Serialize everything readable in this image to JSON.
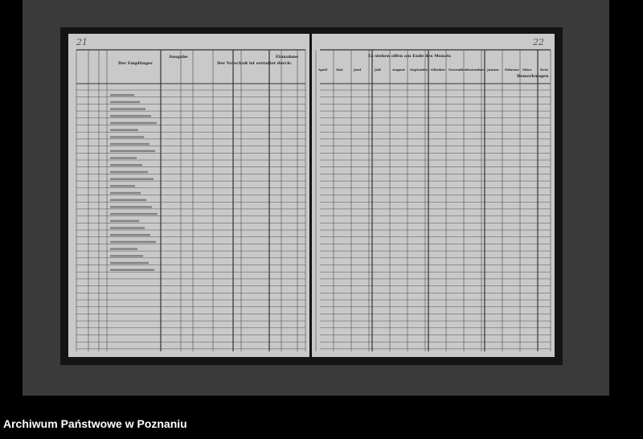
{
  "document": {
    "left_page": {
      "page_number": "21",
      "headers": {
        "recipient": "Der Empfänger",
        "expense": "Ausgabe",
        "advance": "Der Vorschuß ist erstattet durch:",
        "income": "Einnahme"
      }
    },
    "right_page": {
      "page_number": "22",
      "headers": {
        "outstanding": "Es stehen offen am Ende des Monats",
        "months": [
          "April",
          "Mai",
          "Juni",
          "Juli",
          "August",
          "September",
          "Oktober",
          "November",
          "Dezember",
          "Januar",
          "Februar",
          "März"
        ],
        "rest": "Rest",
        "remarks": "Bemerkungen"
      }
    }
  },
  "footer": {
    "archive_name": "Archiwum Państwowe w Poznaniu"
  },
  "colors": {
    "background": "#000000",
    "page": "#c9c9c9",
    "ink": "#222222"
  }
}
